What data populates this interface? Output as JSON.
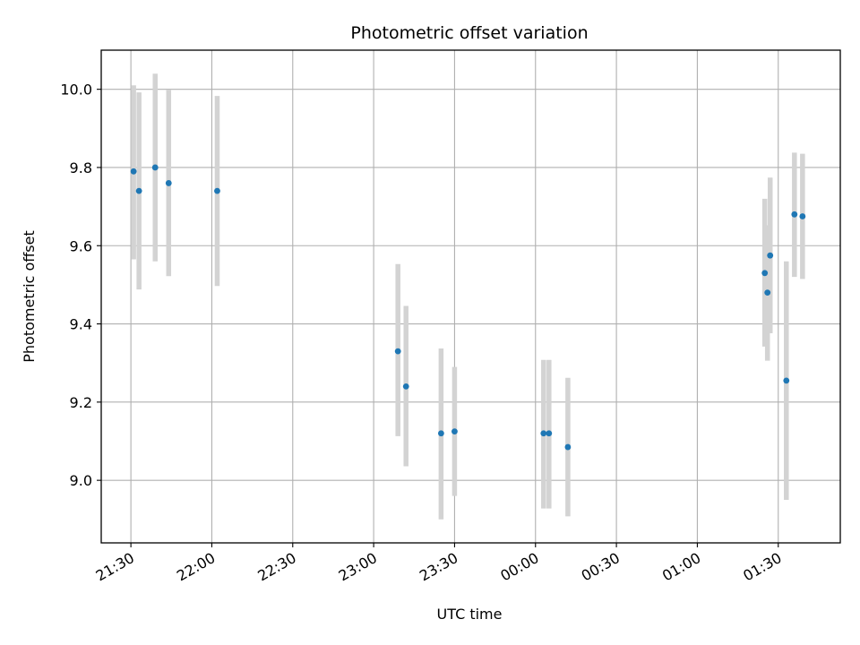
{
  "chart_data": {
    "type": "scatter",
    "title": "Photometric offset variation",
    "xlabel": "UTC time",
    "ylabel": "Photometric offset",
    "x_is_time": true,
    "x_tick_labels": [
      "21:30",
      "22:00",
      "22:30",
      "23:00",
      "23:30",
      "00:00",
      "00:30",
      "01:00",
      "01:30"
    ],
    "xlim": [
      "21:19",
      "01:53"
    ],
    "ylim": [
      8.84,
      10.1
    ],
    "y_ticks": [
      9.0,
      9.2,
      9.4,
      9.6,
      9.8,
      10.0
    ],
    "y_tick_labels": [
      "9.0",
      "9.2",
      "9.4",
      "9.6",
      "9.8",
      "10.0"
    ],
    "grid": true,
    "marker_color": "#1f77b4",
    "errorbar_color": "#d3d3d3",
    "series": [
      {
        "points": [
          {
            "t": "21:31",
            "y": 9.79,
            "lo": 9.565,
            "hi": 10.01
          },
          {
            "t": "21:33",
            "y": 9.74,
            "lo": 9.488,
            "hi": 9.992
          },
          {
            "t": "21:39",
            "y": 9.8,
            "lo": 9.56,
            "hi": 10.04
          },
          {
            "t": "21:44",
            "y": 9.76,
            "lo": 9.522,
            "hi": 9.998
          },
          {
            "t": "22:02",
            "y": 9.74,
            "lo": 9.497,
            "hi": 9.983
          },
          {
            "t": "23:09",
            "y": 9.33,
            "lo": 9.113,
            "hi": 9.553
          },
          {
            "t": "23:12",
            "y": 9.24,
            "lo": 9.036,
            "hi": 9.446
          },
          {
            "t": "23:25",
            "y": 9.12,
            "lo": 8.9,
            "hi": 9.337
          },
          {
            "t": "23:30",
            "y": 9.125,
            "lo": 8.96,
            "hi": 9.29
          },
          {
            "t": "00:03",
            "y": 9.12,
            "lo": 8.928,
            "hi": 9.308
          },
          {
            "t": "00:05",
            "y": 9.12,
            "lo": 8.928,
            "hi": 9.308
          },
          {
            "t": "00:12",
            "y": 9.085,
            "lo": 8.908,
            "hi": 9.262
          },
          {
            "t": "01:25",
            "y": 9.53,
            "lo": 9.342,
            "hi": 9.72
          },
          {
            "t": "01:26",
            "y": 9.48,
            "lo": 9.306,
            "hi": 9.652
          },
          {
            "t": "01:27",
            "y": 9.575,
            "lo": 9.376,
            "hi": 9.774
          },
          {
            "t": "01:33",
            "y": 9.255,
            "lo": 8.95,
            "hi": 9.56
          },
          {
            "t": "01:36",
            "y": 9.68,
            "lo": 9.52,
            "hi": 9.838
          },
          {
            "t": "01:39",
            "y": 9.675,
            "lo": 9.515,
            "hi": 9.835
          }
        ]
      }
    ]
  }
}
